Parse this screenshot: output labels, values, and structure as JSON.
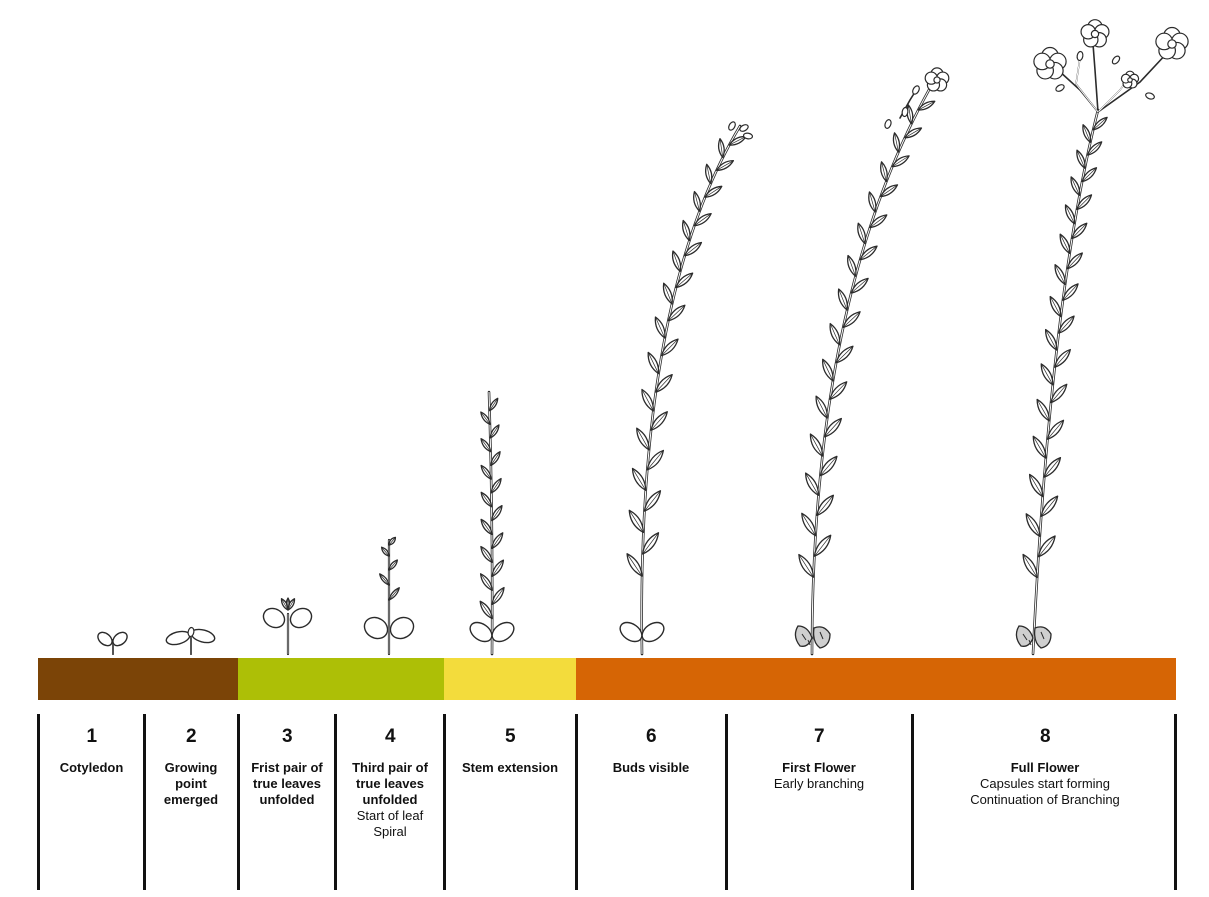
{
  "colors": {
    "stroke": "#2b2b2b",
    "leaf_fill": "#ffffff",
    "divider": "#111111"
  },
  "color_bands": [
    {
      "color": "#7b4407",
      "stages": [
        1,
        2
      ]
    },
    {
      "color": "#adbf06",
      "stages": [
        3,
        4
      ]
    },
    {
      "color": "#f3dc3c",
      "stages": [
        5
      ]
    },
    {
      "color": "#d66505",
      "stages": [
        6,
        7,
        8
      ]
    }
  ],
  "stages": [
    {
      "number": "1",
      "title": "Cotyledon",
      "note": ""
    },
    {
      "number": "2",
      "title": "Growing point emerged",
      "note": ""
    },
    {
      "number": "3",
      "title": "Frist pair of true leaves unfolded",
      "note": ""
    },
    {
      "number": "4",
      "title": "Third pair of true leaves unfolded",
      "note": "Start of leaf Spiral"
    },
    {
      "number": "5",
      "title": "Stem extension",
      "note": ""
    },
    {
      "number": "6",
      "title": "Buds visible",
      "note": ""
    },
    {
      "number": "7",
      "title": "First Flower",
      "note": "Early branching"
    },
    {
      "number": "8",
      "title": "Full Flower",
      "note": "Capsules start forming Continuation of Branching"
    }
  ]
}
